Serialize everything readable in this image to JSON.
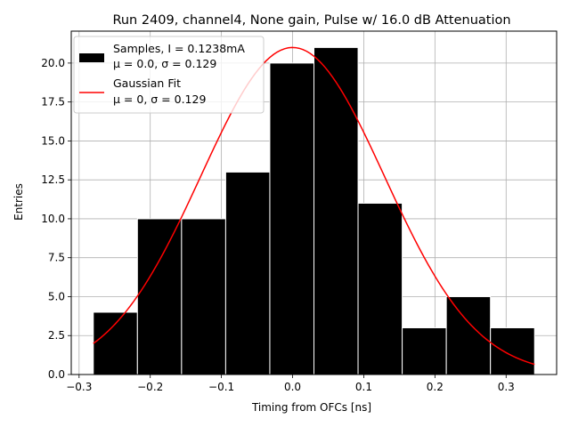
{
  "chart_data": {
    "type": "bar",
    "title": "Run 2409, channel4, None gain, Pulse w/ 16.0 dB Attenuation",
    "xlabel": "Timing from OFCs [ns]",
    "ylabel": "Entries",
    "xlim": [
      -0.311,
      0.371
    ],
    "ylim": [
      0,
      22.05
    ],
    "grid": true,
    "legend_position": "top-left",
    "x_ticks": [
      -0.3,
      -0.2,
      -0.1,
      0.0,
      0.1,
      0.2,
      0.3
    ],
    "x_tick_labels": [
      "−0.3",
      "−0.2",
      "−0.1",
      "0.0",
      "0.1",
      "0.2",
      "0.3"
    ],
    "y_ticks": [
      0.0,
      2.5,
      5.0,
      7.5,
      10.0,
      12.5,
      15.0,
      17.5,
      20.0
    ],
    "y_tick_labels": [
      "0.0",
      "2.5",
      "5.0",
      "7.5",
      "10.0",
      "12.5",
      "15.0",
      "17.5",
      "20.0"
    ],
    "histogram": {
      "bin_edges": [
        -0.28,
        -0.218,
        -0.156,
        -0.094,
        -0.032,
        0.03,
        0.092,
        0.154,
        0.216,
        0.278,
        0.34
      ],
      "counts": [
        4,
        10,
        10,
        13,
        20,
        21,
        11,
        3,
        5,
        3
      ],
      "color": "#000000",
      "edge_color": "#ffffff"
    },
    "fit": {
      "type": "gaussian",
      "mu": 0.0,
      "sigma": 0.129,
      "amplitude": 21.0,
      "x_range": [
        -0.28,
        0.34
      ],
      "color": "#ff0000"
    },
    "legend": [
      {
        "line1": "Samples, I = 0.1238mA",
        "line2": "μ = 0.0, σ = 0.129",
        "kind": "patch",
        "color": "#000000"
      },
      {
        "line1": "Gaussian Fit",
        "line2": "μ = 0, σ = 0.129",
        "kind": "line",
        "color": "#ff0000"
      }
    ]
  }
}
